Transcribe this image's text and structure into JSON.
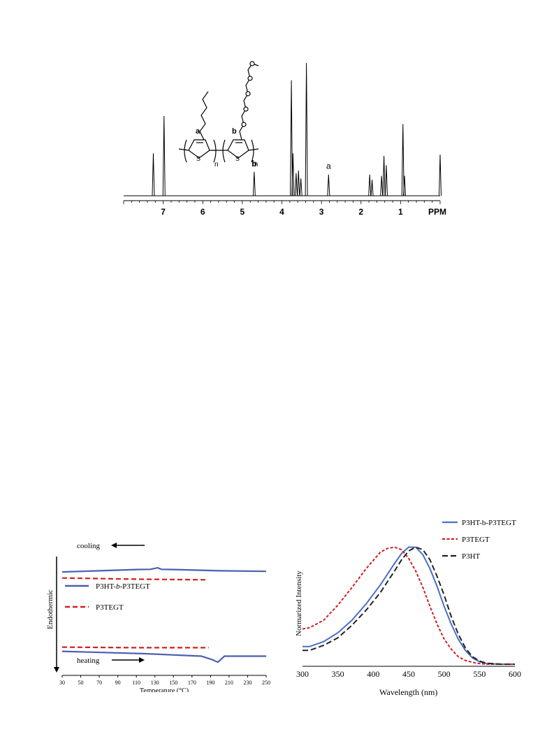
{
  "nmr": {
    "chart_data": {
      "type": "line",
      "xaxis": {
        "label": "PPM",
        "range": [
          8.0,
          0.0
        ],
        "ticks": [
          7,
          6,
          5,
          4,
          3,
          2,
          1
        ]
      },
      "peaks": [
        {
          "ppm": 7.25,
          "height": 0.32
        },
        {
          "ppm": 6.98,
          "height": 0.6
        },
        {
          "ppm": 4.7,
          "height": 0.18,
          "label": "b"
        },
        {
          "ppm": 3.76,
          "height": 0.87
        },
        {
          "ppm": 3.72,
          "height": 0.32
        },
        {
          "ppm": 3.64,
          "height": 0.17
        },
        {
          "ppm": 3.58,
          "height": 0.19
        },
        {
          "ppm": 3.52,
          "height": 0.13
        },
        {
          "ppm": 3.38,
          "height": 1.0
        },
        {
          "ppm": 2.82,
          "height": 0.16,
          "label": "a"
        },
        {
          "ppm": 1.78,
          "height": 0.16
        },
        {
          "ppm": 1.72,
          "height": 0.12
        },
        {
          "ppm": 1.48,
          "height": 0.15
        },
        {
          "ppm": 1.42,
          "height": 0.3
        },
        {
          "ppm": 1.36,
          "height": 0.23
        },
        {
          "ppm": 0.94,
          "height": 0.54
        },
        {
          "ppm": 0.9,
          "height": 0.15
        },
        {
          "ppm": 0.0,
          "height": 0.31
        }
      ]
    },
    "structure_labels": {
      "a": "a",
      "b": "b",
      "n": "n",
      "m": "m",
      "s1": "S",
      "s2": "S"
    }
  },
  "dsc": {
    "chart_data": {
      "type": "line",
      "xaxis": {
        "label": "Temperature (°C)",
        "range": [
          30,
          250
        ],
        "ticks": [
          30,
          50,
          70,
          90,
          110,
          130,
          150,
          170,
          190,
          210,
          230,
          250
        ]
      },
      "ylabel": "Endothermic",
      "series": [
        {
          "name": "P3HT-b-P3TEGT",
          "color": "#4a5fb0",
          "style": "solid",
          "cooling": [
            [
              30,
              0.14
            ],
            [
              110,
              0.12
            ],
            [
              125,
              0.118
            ],
            [
              133,
              0.105
            ],
            [
              137,
              0.118
            ],
            [
              150,
              0.12
            ],
            [
              200,
              0.13
            ],
            [
              250,
              0.135
            ]
          ],
          "heating": [
            [
              30,
              0.8
            ],
            [
              120,
              0.82
            ],
            [
              180,
              0.84
            ],
            [
              192,
              0.87
            ],
            [
              198,
              0.89
            ],
            [
              205,
              0.84
            ],
            [
              250,
              0.84
            ]
          ]
        },
        {
          "name": "P3TEGT",
          "color": "#d02020",
          "style": "dashed",
          "cooling": [
            [
              30,
              0.19
            ],
            [
              110,
              0.2
            ],
            [
              185,
              0.205
            ]
          ],
          "heating": [
            [
              30,
              0.765
            ],
            [
              110,
              0.77
            ],
            [
              188,
              0.77
            ]
          ]
        }
      ]
    },
    "labels": {
      "cooling": "cooling",
      "heating": "heating",
      "legend1_pre": "P3HT-",
      "legend1_b": "b",
      "legend1_post": "-P3TEGT",
      "legend2": "P3TEGT"
    }
  },
  "uv": {
    "chart_data": {
      "type": "line",
      "xlabel": "Wavelength (nm)",
      "ylabel": "Normarized Intensity",
      "xlim": [
        300,
        600
      ],
      "xticks": [
        300,
        350,
        400,
        450,
        500,
        550,
        600
      ],
      "ylim": [
        0,
        1
      ],
      "series": [
        {
          "name": "P3HT-b-P3TEGT",
          "color": "#4a6fc8",
          "style": "solid",
          "x": [
            300,
            310,
            330,
            350,
            370,
            390,
            410,
            430,
            440,
            450,
            460,
            470,
            480,
            490,
            500,
            510,
            520,
            530,
            540,
            550,
            560,
            580,
            600
          ],
          "y": [
            0.14,
            0.14,
            0.18,
            0.25,
            0.35,
            0.48,
            0.63,
            0.8,
            0.88,
            0.93,
            0.93,
            0.87,
            0.76,
            0.62,
            0.46,
            0.32,
            0.2,
            0.11,
            0.05,
            0.02,
            0.005,
            0.0,
            0.0
          ]
        },
        {
          "name": "P3TEGT",
          "color": "#d02020",
          "style": "dotted",
          "x": [
            300,
            310,
            330,
            350,
            370,
            390,
            410,
            420,
            430,
            440,
            450,
            460,
            470,
            480,
            490,
            500,
            510,
            520,
            530,
            540,
            550,
            560,
            580,
            600
          ],
          "y": [
            0.28,
            0.29,
            0.35,
            0.47,
            0.61,
            0.76,
            0.89,
            0.92,
            0.93,
            0.91,
            0.84,
            0.74,
            0.61,
            0.46,
            0.32,
            0.2,
            0.12,
            0.06,
            0.03,
            0.015,
            0.005,
            0.0,
            0.0,
            0.0
          ]
        },
        {
          "name": "P3HT",
          "color": "#222222",
          "style": "dashed",
          "x": [
            300,
            310,
            330,
            350,
            370,
            390,
            410,
            430,
            440,
            450,
            460,
            470,
            480,
            490,
            500,
            510,
            520,
            530,
            540,
            550,
            560,
            580,
            600
          ],
          "y": [
            0.11,
            0.11,
            0.15,
            0.21,
            0.31,
            0.43,
            0.57,
            0.74,
            0.83,
            0.9,
            0.93,
            0.91,
            0.83,
            0.7,
            0.55,
            0.38,
            0.24,
            0.13,
            0.06,
            0.025,
            0.008,
            0.0,
            0.0
          ]
        }
      ],
      "legend": "top-right"
    }
  }
}
